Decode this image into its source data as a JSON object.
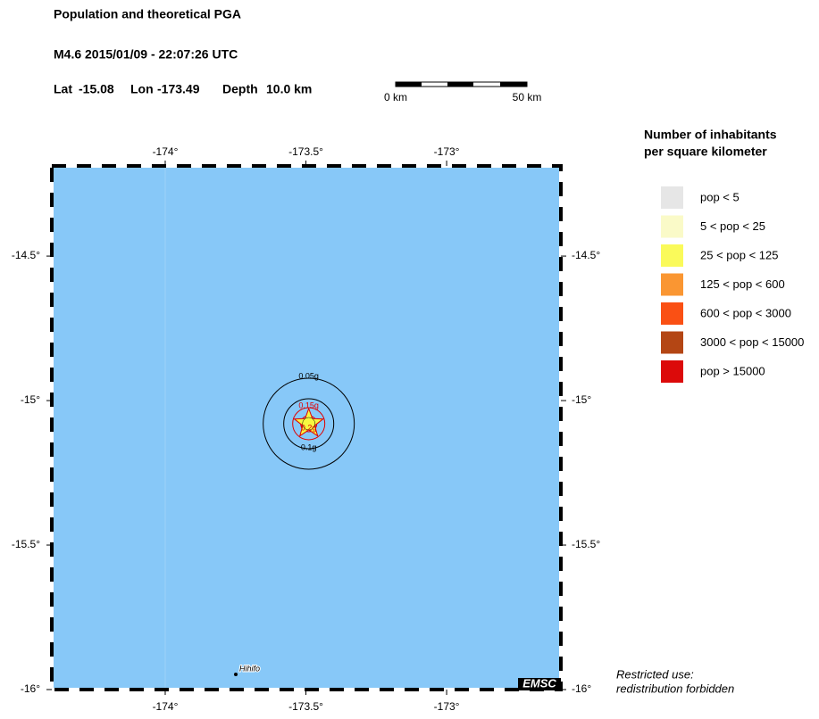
{
  "header": {
    "title": "Population and theoretical PGA",
    "event": "M4.6  2015/01/09 - 22:07:26 UTC",
    "location": {
      "lat_label": "Lat",
      "lat": -15.08,
      "lon_label": "Lon",
      "lon": -173.49,
      "depth_label": "Depth",
      "depth": "10.0 km"
    }
  },
  "scale_bar": {
    "start": "0 km",
    "end": "50 km"
  },
  "map": {
    "lon_ticks": [
      {
        "value": -174,
        "label": "-174°"
      },
      {
        "value": -173.5,
        "label": "-173.5°"
      },
      {
        "value": -173,
        "label": "-173°"
      }
    ],
    "lat_ticks": [
      {
        "value": -14.5,
        "label": "-14.5°"
      },
      {
        "value": -15,
        "label": "-15°"
      },
      {
        "value": -15.5,
        "label": "-15.5°"
      },
      {
        "value": -16,
        "label": "-16°"
      }
    ],
    "epicenter": {
      "lat": -15.08,
      "lon": -173.49
    },
    "contours": [
      {
        "label": "0.05g",
        "color": "#000000"
      },
      {
        "label": "0.1g",
        "color": "#000000"
      },
      {
        "label": "0.15g",
        "color": "#e00000"
      },
      {
        "label": "0.2g",
        "color": "#e00000"
      }
    ],
    "city": "Hihifo",
    "credit": "EMSC",
    "water_color": "#87c8f8"
  },
  "legend": {
    "title": [
      "Number of inhabitants",
      "per square kilometer"
    ],
    "items": [
      {
        "label": "pop < 5",
        "color": "#e6e6e6"
      },
      {
        "label": "5 < pop < 25",
        "color": "#fafac8"
      },
      {
        "label": "25 < pop < 125",
        "color": "#fafa5a"
      },
      {
        "label": "125 < pop < 600",
        "color": "#fa9632"
      },
      {
        "label": "600 < pop < 3000",
        "color": "#fa5014"
      },
      {
        "label": "3000 < pop < 15000",
        "color": "#b44614"
      },
      {
        "label": "pop > 15000",
        "color": "#dc0a0a"
      }
    ]
  },
  "notice": [
    "Restricted use:",
    "redistribution forbidden"
  ]
}
